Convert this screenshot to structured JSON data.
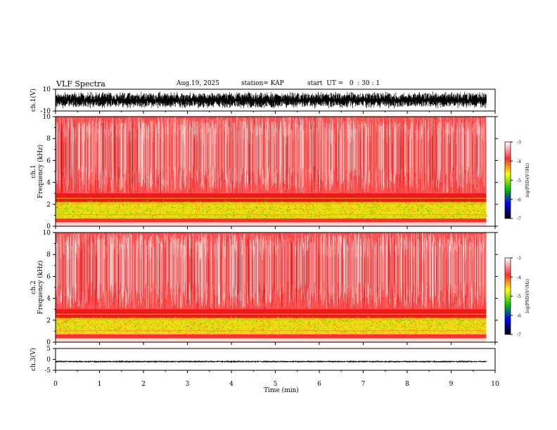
{
  "header": {
    "title": "VLF Spectra",
    "date": "Aug.19, 2025",
    "station": "station= KAP",
    "start_ut": "start  UT =   0  : 30 : 1"
  },
  "chart_data": [
    {
      "type": "line",
      "name": "ch1-waveform",
      "ylabel": "ch.1(V)",
      "ylim": [
        -10,
        10
      ],
      "yticks": [
        "10",
        "-10"
      ],
      "xlim": [
        0,
        10
      ],
      "data_xmax": 9.8,
      "noise_amplitude_v": 8
    },
    {
      "type": "heatmap",
      "name": "ch1-spectrogram",
      "ylabel_line1": "ch.1",
      "ylabel_line2": "Frequency  (kHz)",
      "ylim": [
        0,
        10
      ],
      "yticks": [
        "0",
        "2",
        "4",
        "6",
        "8",
        "10"
      ],
      "xlim": [
        0,
        10
      ],
      "data_xmax": 9.8,
      "colorbar_label": "log(PSD)(V²/Hz)",
      "colorbar_ticks": [
        "-3",
        "-4",
        "-5",
        "-6",
        "-7"
      ],
      "colorbar_range": [
        -7,
        -3
      ]
    },
    {
      "type": "heatmap",
      "name": "ch2-spectrogram",
      "ylabel_line1": "ch.2",
      "ylabel_line2": "Frequency  (kHz)",
      "ylim": [
        0,
        10
      ],
      "yticks": [
        "0",
        "2",
        "4",
        "6",
        "8",
        "10"
      ],
      "xlim": [
        0,
        10
      ],
      "data_xmax": 9.8,
      "colorbar_label": "log(PSD)(V²/Hz)",
      "colorbar_ticks": [
        "-3",
        "-4",
        "-5",
        "-6",
        "-7"
      ],
      "colorbar_range": [
        -7,
        -3
      ]
    },
    {
      "type": "line",
      "name": "ch3-waveform",
      "ylabel": "ch.3(V)",
      "ylim": [
        -5,
        5
      ],
      "yticks": [
        "5",
        "0",
        "-5"
      ],
      "xlim": [
        0,
        10
      ],
      "data_xmax": 9.8,
      "level_v": -1.0,
      "noise_amplitude_v": 0.5
    }
  ],
  "x_axis": {
    "label": "Time  (min)",
    "ticks": [
      "0",
      "1",
      "2",
      "3",
      "4",
      "5",
      "6",
      "7",
      "8",
      "9",
      "10"
    ]
  },
  "colors": {
    "waveform": "#000000",
    "bg": "#ffffff"
  }
}
